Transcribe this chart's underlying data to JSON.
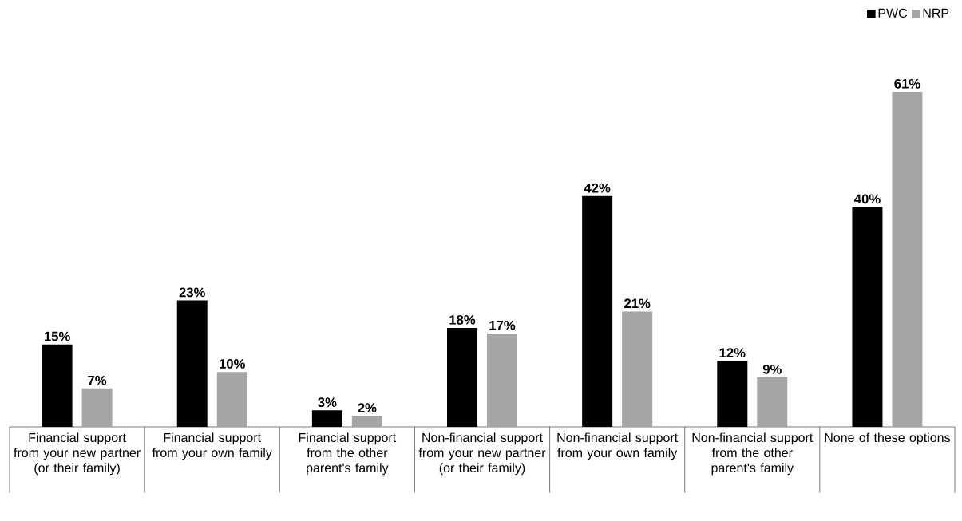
{
  "chart_data": {
    "type": "bar",
    "categories": [
      "Financial support from your new partner (or their family)",
      "Financial support from your own family",
      "Financial support from the other parent's family",
      "Non-financial support from your new partner (or their family)",
      "Non-financial support from your own family",
      "Non-financial support from the other parent's family",
      "None of these options"
    ],
    "series": [
      {
        "name": "PWC",
        "color": "#000000",
        "values": [
          15,
          23,
          3,
          18,
          42,
          12,
          40
        ],
        "value_labels": [
          "15%",
          "23%",
          "3%",
          "18%",
          "42%",
          "12%",
          "40%"
        ]
      },
      {
        "name": "NRP",
        "color": "#a5a5a5",
        "values": [
          7,
          10,
          2,
          17,
          21,
          9,
          61
        ],
        "value_labels": [
          "7%",
          "10%",
          "2%",
          "17%",
          "21%",
          "9%",
          "61%"
        ]
      }
    ],
    "legend": "top right"
  }
}
